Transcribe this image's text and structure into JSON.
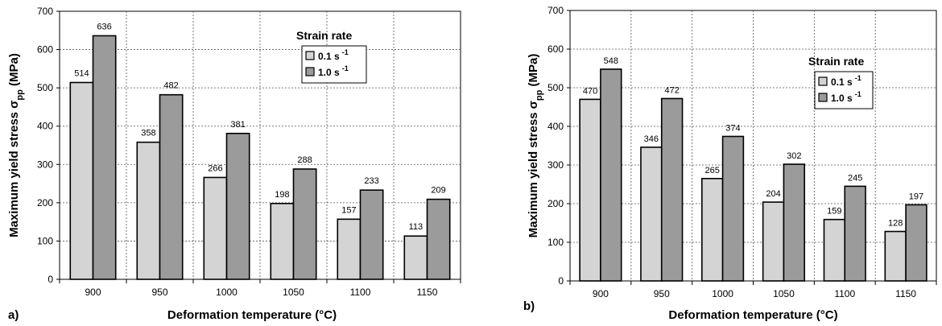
{
  "chart_data": [
    {
      "type": "bar",
      "panel_label": "a)",
      "xlabel": "Deformation temperature (°C)",
      "ylabel": {
        "prefix": "Maximum yield stress  σ",
        "subscript": "pp",
        "suffix": " (MPa)"
      },
      "categories": [
        "900",
        "950",
        "1000",
        "1050",
        "1100",
        "1150"
      ],
      "ylim": [
        0,
        700
      ],
      "yticks": [
        0,
        100,
        200,
        300,
        400,
        500,
        600,
        700
      ],
      "grid": true,
      "legend": {
        "title": "Strain rate",
        "placement": "right"
      },
      "series": [
        {
          "name": "0.1 s",
          "superscript": "-1",
          "color": "#d4d4d4",
          "values": [
            514,
            358,
            266,
            198,
            157,
            113
          ]
        },
        {
          "name": "1.0 s",
          "superscript": "-1",
          "color": "#9b9b9b",
          "values": [
            636,
            482,
            381,
            288,
            233,
            209
          ]
        }
      ]
    },
    {
      "type": "bar",
      "panel_label": "b)",
      "xlabel": "Deformation temperature (°C)",
      "ylabel": {
        "prefix": "Maximum yield stress  σ",
        "subscript": "pp",
        "suffix": " (MPa)"
      },
      "categories": [
        "900",
        "950",
        "1000",
        "1050",
        "1100",
        "1150"
      ],
      "ylim": [
        0,
        700
      ],
      "yticks": [
        0,
        100,
        200,
        300,
        400,
        500,
        600,
        700
      ],
      "grid": true,
      "legend": {
        "title": "Strain rate",
        "placement": "right"
      },
      "series": [
        {
          "name": "0.1 s",
          "superscript": "-1",
          "color": "#d4d4d4",
          "values": [
            470,
            346,
            265,
            204,
            159,
            128
          ]
        },
        {
          "name": "1.0 s",
          "superscript": "-1",
          "color": "#9b9b9b",
          "values": [
            548,
            472,
            374,
            302,
            245,
            197
          ]
        }
      ]
    }
  ]
}
